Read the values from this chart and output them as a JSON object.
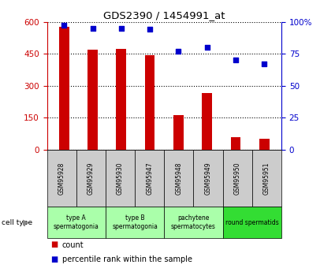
{
  "title": "GDS2390 / 1454991_at",
  "samples": [
    "GSM95928",
    "GSM95929",
    "GSM95930",
    "GSM95947",
    "GSM95948",
    "GSM95949",
    "GSM95950",
    "GSM95951"
  ],
  "counts": [
    578,
    468,
    472,
    442,
    163,
    267,
    60,
    52
  ],
  "percentiles": [
    97,
    95,
    95,
    94,
    77,
    80,
    70,
    67
  ],
  "cell_types": [
    {
      "label": "type A\nspermatogonia",
      "span": [
        0,
        2
      ],
      "color": "#aaffaa"
    },
    {
      "label": "type B\nspermatogonia",
      "span": [
        2,
        4
      ],
      "color": "#aaffaa"
    },
    {
      "label": "pachytene\nspermatocytes",
      "span": [
        4,
        6
      ],
      "color": "#aaffaa"
    },
    {
      "label": "round spermatids",
      "span": [
        6,
        8
      ],
      "color": "#33dd33"
    }
  ],
  "bar_color": "#cc0000",
  "dot_color": "#0000cc",
  "left_yticks": [
    0,
    150,
    300,
    450,
    600
  ],
  "right_yticks": [
    0,
    25,
    50,
    75,
    100
  ],
  "ylim_left": [
    0,
    600
  ],
  "ylim_right": [
    0,
    100
  ],
  "tick_label_color_left": "#cc0000",
  "tick_label_color_right": "#0000cc",
  "cell_type_label": "cell type",
  "legend_count_color": "#cc0000",
  "legend_pct_color": "#0000cc",
  "legend_count_text": "count",
  "legend_pct_text": "percentile rank within the sample",
  "sample_bg": "#cccccc",
  "bar_width": 0.35
}
